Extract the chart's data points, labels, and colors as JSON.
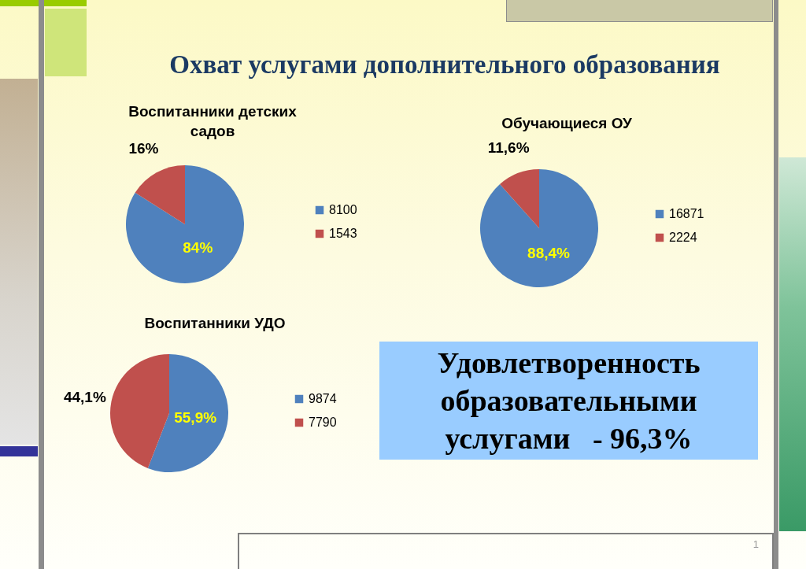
{
  "chart_data": [
    {
      "type": "other",
      "title": "Охват услугами дополнительного образования"
    },
    {
      "type": "pie",
      "title": "Воспитанники детских садов",
      "categories": [
        "8100",
        "1543"
      ],
      "values": [
        84,
        16
      ],
      "colors": [
        "#4f81bd",
        "#c0504d"
      ],
      "value_labels": [
        "84%",
        "16%"
      ],
      "legend": "right"
    },
    {
      "type": "pie",
      "title": "Обучающиеся ОУ",
      "categories": [
        "16871",
        "2224"
      ],
      "values": [
        88.4,
        11.6
      ],
      "colors": [
        "#4f81bd",
        "#c0504d"
      ],
      "value_labels": [
        "88,4%",
        "11,6%"
      ],
      "legend": "right"
    },
    {
      "type": "pie",
      "title": "Воспитанники УДО",
      "categories": [
        "9874",
        "7790"
      ],
      "values": [
        55.9,
        44.1
      ],
      "colors": [
        "#4f81bd",
        "#c0504d"
      ],
      "value_labels": [
        "55,9%",
        "44,1%"
      ],
      "legend": "right"
    },
    {
      "type": "other",
      "annotations": [
        "Удовлетворенность образовательными услугами   - 96,3%",
        "1"
      ]
    }
  ]
}
